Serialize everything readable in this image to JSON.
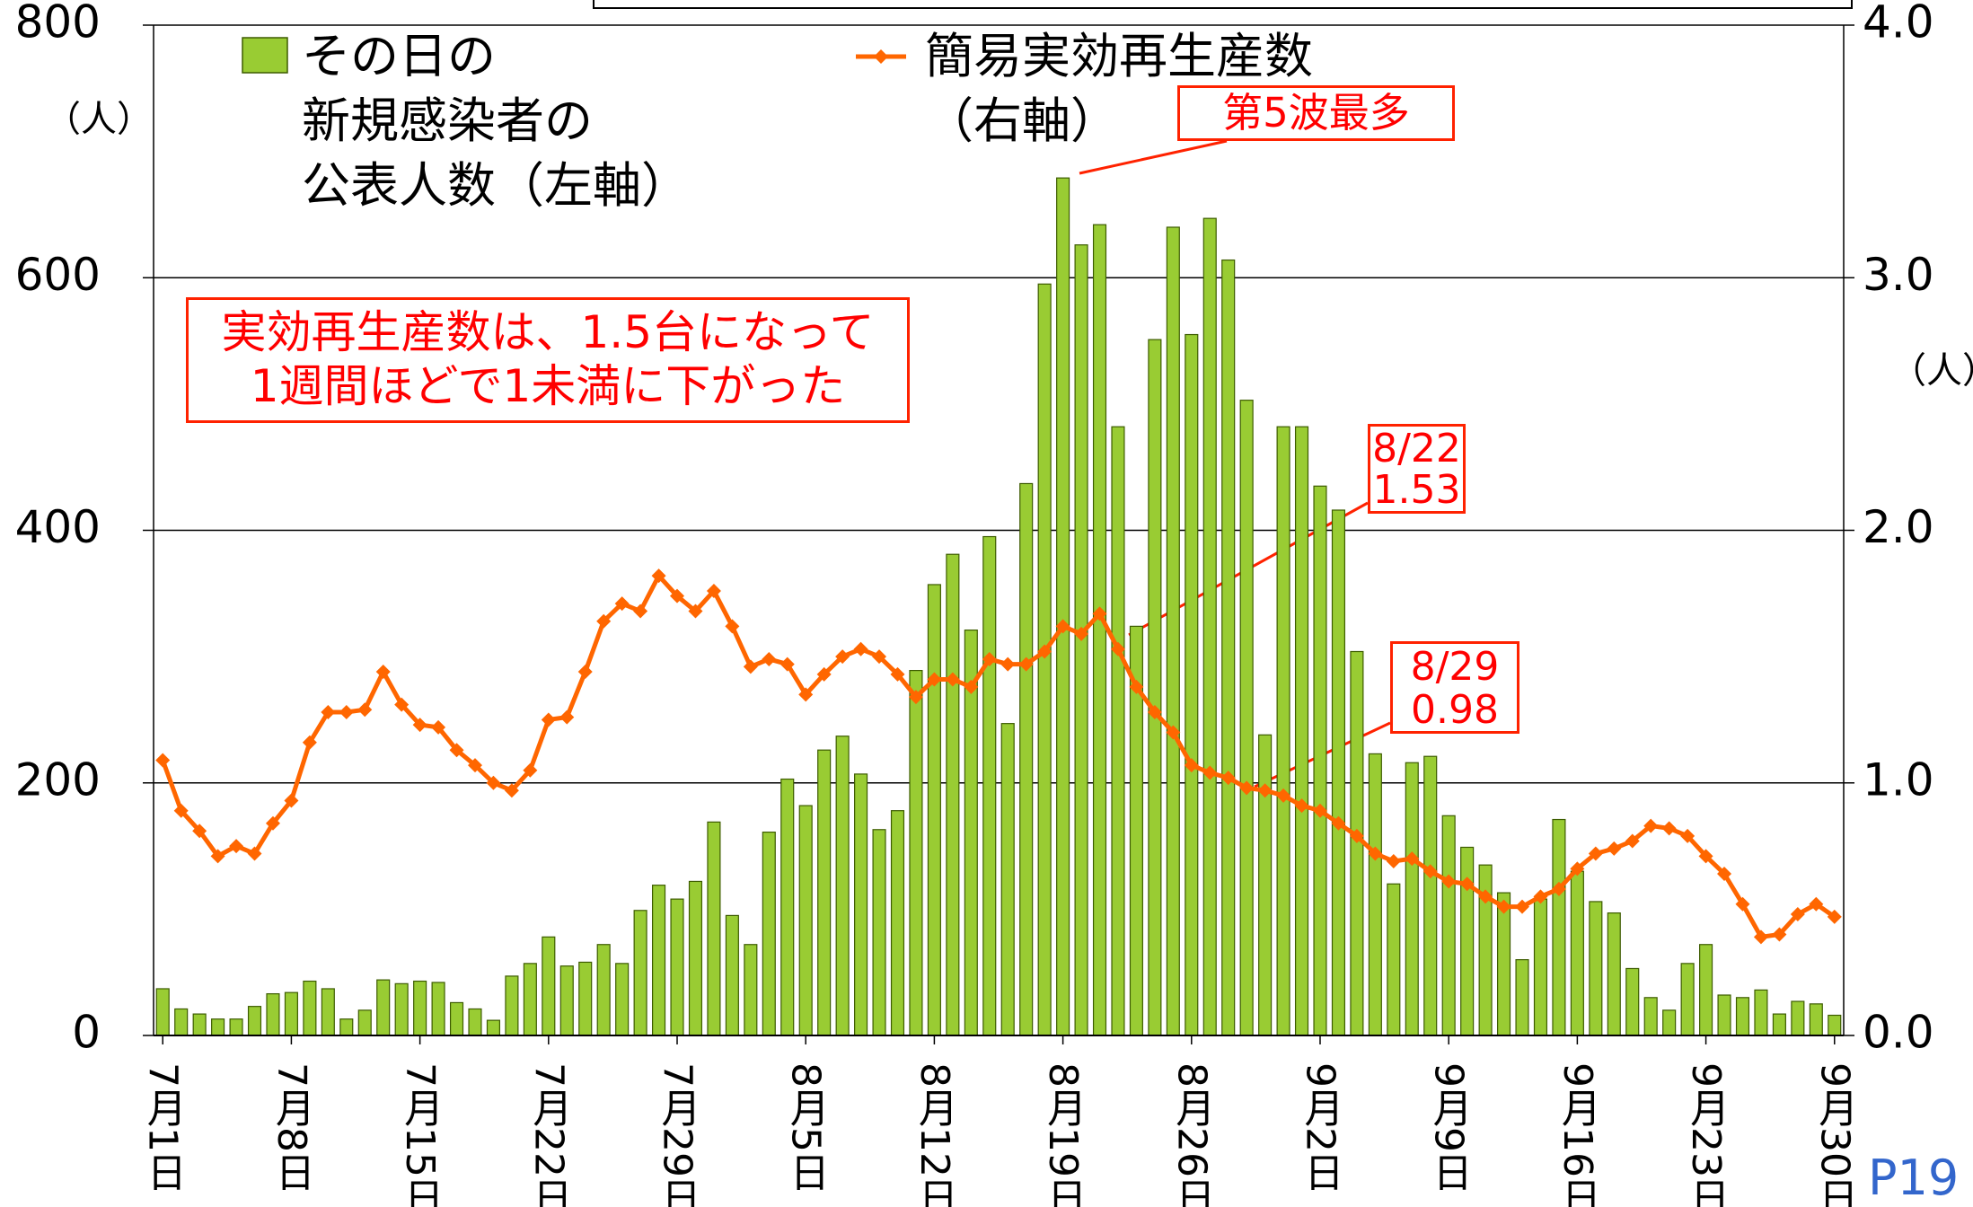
{
  "chart_data": {
    "type": "bar_line",
    "categories": [
      "7月1日",
      null,
      null,
      null,
      null,
      null,
      null,
      "7月8日",
      null,
      null,
      null,
      null,
      null,
      null,
      "7月15日",
      null,
      null,
      null,
      null,
      null,
      null,
      "7月22日",
      null,
      null,
      null,
      null,
      null,
      null,
      "7月29日",
      null,
      null,
      null,
      null,
      null,
      null,
      "8月5日",
      null,
      null,
      null,
      null,
      null,
      null,
      "8月12日",
      null,
      null,
      null,
      null,
      null,
      null,
      "8月19日",
      null,
      null,
      null,
      null,
      null,
      null,
      "8月26日",
      null,
      null,
      null,
      null,
      null,
      null,
      "9月2日",
      null,
      null,
      null,
      null,
      null,
      null,
      "9月9日",
      null,
      null,
      null,
      null,
      null,
      null,
      "9月16日",
      null,
      null,
      null,
      null,
      null,
      null,
      "9月23日",
      null,
      null,
      null,
      null,
      null,
      null,
      "9月30日"
    ],
    "series": [
      {
        "name": "その日の\n新規感染者の\n公表人数（左軸）",
        "type": "bar",
        "color": "#99cc33",
        "values": [
          37,
          21,
          17,
          13,
          13,
          23,
          33,
          34,
          43,
          37,
          13,
          20,
          44,
          41,
          43,
          42,
          26,
          21,
          12,
          47,
          57,
          78,
          55,
          58,
          72,
          57,
          99,
          119,
          108,
          122,
          169,
          95,
          72,
          161,
          203,
          182,
          226,
          237,
          207,
          163,
          178,
          289,
          357,
          381,
          321,
          395,
          247,
          437,
          595,
          679,
          626,
          642,
          482,
          324,
          551,
          640,
          555,
          647,
          614,
          503,
          238,
          482,
          482,
          435,
          416,
          304,
          223,
          120,
          216,
          221,
          174,
          149,
          135,
          113,
          60,
          108,
          171,
          130,
          106,
          97,
          53,
          30,
          20,
          57,
          72,
          32,
          30,
          36,
          17,
          27,
          25,
          16
        ]
      },
      {
        "name": "簡易実効再生産数\n（右軸）",
        "type": "line",
        "axis": "y2",
        "color": "#ff6600",
        "values": [
          1.09,
          0.89,
          0.81,
          0.71,
          0.75,
          0.72,
          0.84,
          0.93,
          1.16,
          1.28,
          1.28,
          1.29,
          1.44,
          1.31,
          1.23,
          1.22,
          1.13,
          1.07,
          1.0,
          0.97,
          1.05,
          1.25,
          1.26,
          1.44,
          1.64,
          1.71,
          1.68,
          1.82,
          1.74,
          1.68,
          1.76,
          1.62,
          1.46,
          1.49,
          1.47,
          1.35,
          1.43,
          1.5,
          1.53,
          1.5,
          1.43,
          1.34,
          1.41,
          1.41,
          1.38,
          1.49,
          1.47,
          1.47,
          1.52,
          1.62,
          1.59,
          1.67,
          1.53,
          1.38,
          1.28,
          1.2,
          1.07,
          1.04,
          1.02,
          0.98,
          0.97,
          0.95,
          0.91,
          0.89,
          0.84,
          0.79,
          0.72,
          0.69,
          0.7,
          0.65,
          0.61,
          0.6,
          0.55,
          0.51,
          0.51,
          0.55,
          0.58,
          0.66,
          0.72,
          0.74,
          0.77,
          0.83,
          0.82,
          0.79,
          0.71,
          0.64,
          0.52,
          0.39,
          0.4,
          0.48,
          0.52,
          0.47
        ]
      }
    ],
    "ylim": [
      0,
      800
    ],
    "yticks": [
      0,
      200,
      400,
      600,
      800
    ],
    "y2lim": [
      0,
      4
    ],
    "y2ticks": [
      {
        "value": 0,
        "label": "0.0"
      },
      {
        "value": 1,
        "label": "1.0"
      },
      {
        "value": 2,
        "label": "2.0"
      },
      {
        "value": 3,
        "label": "3.0"
      },
      {
        "value": 4,
        "label": "4.0"
      }
    ],
    "grid": true,
    "y_unit": "（人）",
    "y2_unit": "（人）",
    "annotations": [
      "第5波最多",
      "実効再生産数は、1.5台になって\n1週間ほどで1未満に下がった",
      "8/22\n1.53",
      "8/29\n0.98"
    ],
    "page_number": "P19"
  }
}
